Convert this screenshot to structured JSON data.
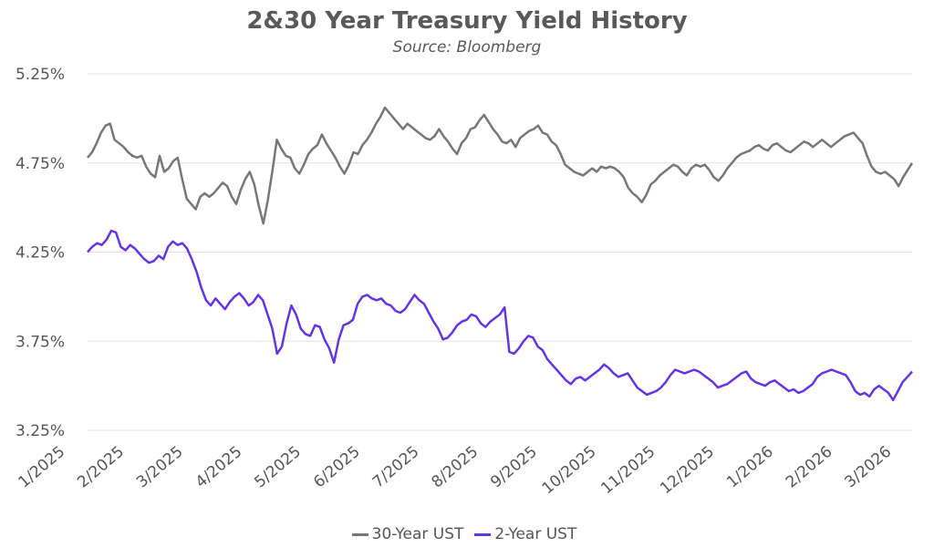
{
  "colors": {
    "s30": "#777777",
    "s2": "#6633e6",
    "grid": "#e4e4e4"
  },
  "chart_data": {
    "type": "line",
    "title": "2&30 Year Treasury Yield History",
    "subtitle": "Source: Bloomberg",
    "xlabel": "",
    "ylabel": "",
    "ylim": [
      3.25,
      5.25
    ],
    "y_ticks": [
      "3.25%",
      "3.75%",
      "4.25%",
      "4.75%",
      "5.25%"
    ],
    "x_ticks": [
      "1/2025",
      "2/2025",
      "3/2025",
      "4/2025",
      "5/2025",
      "6/2025",
      "7/2025",
      "8/2025",
      "9/2025",
      "10/2025",
      "11/2025",
      "12/2025",
      "1/2026",
      "2/2026",
      "3/2026"
    ],
    "legend_position": "bottom",
    "grid": true,
    "series": [
      {
        "name": "30-Year UST",
        "values": [
          4.78,
          4.81,
          4.86,
          4.92,
          4.96,
          4.97,
          4.88,
          4.86,
          4.84,
          4.81,
          4.79,
          4.78,
          4.79,
          4.73,
          4.69,
          4.67,
          4.79,
          4.7,
          4.72,
          4.76,
          4.78,
          4.66,
          4.55,
          4.52,
          4.49,
          4.56,
          4.58,
          4.56,
          4.58,
          4.61,
          4.64,
          4.62,
          4.56,
          4.52,
          4.6,
          4.66,
          4.7,
          4.63,
          4.51,
          4.41,
          4.54,
          4.7,
          4.88,
          4.83,
          4.79,
          4.78,
          4.72,
          4.69,
          4.74,
          4.8,
          4.83,
          4.85,
          4.91,
          4.86,
          4.82,
          4.78,
          4.73,
          4.69,
          4.74,
          4.81,
          4.8,
          4.85,
          4.88,
          4.92,
          4.97,
          5.01,
          5.06,
          5.03,
          5.0,
          4.97,
          4.94,
          4.97,
          4.95,
          4.93,
          4.91,
          4.89,
          4.88,
          4.9,
          4.94,
          4.9,
          4.87,
          4.83,
          4.8,
          4.86,
          4.89,
          4.94,
          4.95,
          4.99,
          5.02,
          4.98,
          4.94,
          4.91,
          4.87,
          4.86,
          4.88,
          4.84,
          4.89,
          4.91,
          4.93,
          4.94,
          4.96,
          4.92,
          4.91,
          4.87,
          4.85,
          4.8,
          4.74,
          4.72,
          4.7,
          4.69,
          4.68,
          4.7,
          4.72,
          4.7,
          4.73,
          4.72,
          4.73,
          4.72,
          4.7,
          4.67,
          4.61,
          4.58,
          4.56,
          4.53,
          4.57,
          4.63,
          4.65,
          4.68,
          4.7,
          4.72,
          4.74,
          4.73,
          4.7,
          4.68,
          4.72,
          4.74,
          4.73,
          4.74,
          4.71,
          4.67,
          4.65,
          4.68,
          4.72,
          4.75,
          4.78,
          4.8,
          4.81,
          4.82,
          4.84,
          4.85,
          4.83,
          4.82,
          4.85,
          4.86,
          4.84,
          4.82,
          4.81,
          4.83,
          4.85,
          4.87,
          4.86,
          4.84,
          4.86,
          4.88,
          4.86,
          4.84,
          4.86,
          4.88,
          4.9,
          4.91,
          4.92,
          4.89,
          4.86,
          4.79,
          4.73,
          4.7,
          4.69,
          4.7,
          4.68,
          4.66,
          4.62,
          4.67,
          4.71,
          4.75
        ]
      },
      {
        "name": "2-Year UST",
        "values": [
          4.25,
          4.28,
          4.3,
          4.29,
          4.32,
          4.37,
          4.36,
          4.28,
          4.26,
          4.29,
          4.27,
          4.24,
          4.21,
          4.19,
          4.2,
          4.23,
          4.21,
          4.28,
          4.31,
          4.29,
          4.3,
          4.27,
          4.21,
          4.14,
          4.05,
          3.98,
          3.95,
          3.99,
          3.96,
          3.93,
          3.97,
          4.0,
          4.02,
          3.99,
          3.95,
          3.97,
          4.01,
          3.98,
          3.9,
          3.82,
          3.68,
          3.72,
          3.85,
          3.95,
          3.9,
          3.82,
          3.79,
          3.78,
          3.84,
          3.83,
          3.76,
          3.71,
          3.63,
          3.76,
          3.84,
          3.85,
          3.87,
          3.96,
          4.0,
          4.01,
          3.99,
          3.98,
          3.99,
          3.96,
          3.95,
          3.92,
          3.91,
          3.93,
          3.97,
          4.01,
          3.98,
          3.96,
          3.91,
          3.86,
          3.82,
          3.76,
          3.77,
          3.8,
          3.84,
          3.86,
          3.87,
          3.9,
          3.89,
          3.85,
          3.83,
          3.86,
          3.88,
          3.9,
          3.94,
          3.69,
          3.68,
          3.71,
          3.75,
          3.78,
          3.77,
          3.72,
          3.7,
          3.65,
          3.62,
          3.59,
          3.56,
          3.53,
          3.51,
          3.54,
          3.55,
          3.53,
          3.55,
          3.57,
          3.59,
          3.62,
          3.6,
          3.57,
          3.55,
          3.56,
          3.57,
          3.53,
          3.49,
          3.47,
          3.45,
          3.46,
          3.47,
          3.49,
          3.52,
          3.56,
          3.59,
          3.58,
          3.57,
          3.58,
          3.59,
          3.58,
          3.56,
          3.54,
          3.52,
          3.49,
          3.5,
          3.51,
          3.53,
          3.55,
          3.57,
          3.58,
          3.54,
          3.52,
          3.51,
          3.5,
          3.52,
          3.53,
          3.51,
          3.49,
          3.47,
          3.48,
          3.46,
          3.47,
          3.49,
          3.51,
          3.55,
          3.57,
          3.58,
          3.59,
          3.58,
          3.57,
          3.56,
          3.52,
          3.47,
          3.45,
          3.46,
          3.44,
          3.48,
          3.5,
          3.48,
          3.46,
          3.42,
          3.47,
          3.52,
          3.55,
          3.58
        ]
      }
    ]
  },
  "legend": {
    "items": [
      "30-Year UST",
      "2-Year UST"
    ]
  }
}
